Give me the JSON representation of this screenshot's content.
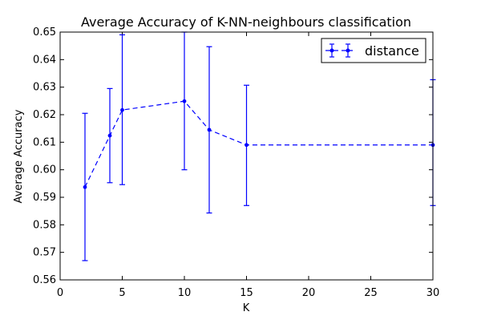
{
  "chart_data": {
    "type": "line",
    "title": "Average Accuracy of K-NN-neighbours classification",
    "xlabel": "K",
    "ylabel": "Average Accuracy",
    "xlim": [
      0,
      30
    ],
    "ylim": [
      0.56,
      0.65
    ],
    "x_ticks": [
      0,
      5,
      10,
      15,
      20,
      25,
      30
    ],
    "x_tick_labels": [
      "0",
      "5",
      "10",
      "15",
      "20",
      "25",
      "30"
    ],
    "y_ticks": [
      0.56,
      0.57,
      0.58,
      0.59,
      0.6,
      0.61,
      0.62,
      0.63,
      0.64,
      0.65
    ],
    "y_tick_labels": [
      "0.56",
      "0.57",
      "0.58",
      "0.59",
      "0.60",
      "0.61",
      "0.62",
      "0.63",
      "0.64",
      "0.65"
    ],
    "grid": false,
    "legend_position": "top-right",
    "series": [
      {
        "name": "distance",
        "color": "#0000ff",
        "line_style": "dashed",
        "marker": "circle",
        "error_bars": true,
        "points": [
          {
            "x": 2,
            "y": 0.5937,
            "err_low": 0.567,
            "err_high": 0.6205
          },
          {
            "x": 4,
            "y": 0.6124,
            "err_low": 0.5953,
            "err_high": 0.6295
          },
          {
            "x": 5,
            "y": 0.6217,
            "err_low": 0.5946,
            "err_high": 0.649
          },
          {
            "x": 10,
            "y": 0.6249,
            "err_low": 0.6,
            "err_high": 0.65
          },
          {
            "x": 12,
            "y": 0.6145,
            "err_low": 0.5843,
            "err_high": 0.6447
          },
          {
            "x": 15,
            "y": 0.609,
            "err_low": 0.587,
            "err_high": 0.6307
          },
          {
            "x": 30,
            "y": 0.609,
            "err_low": 0.587,
            "err_high": 0.6327
          }
        ]
      }
    ]
  }
}
